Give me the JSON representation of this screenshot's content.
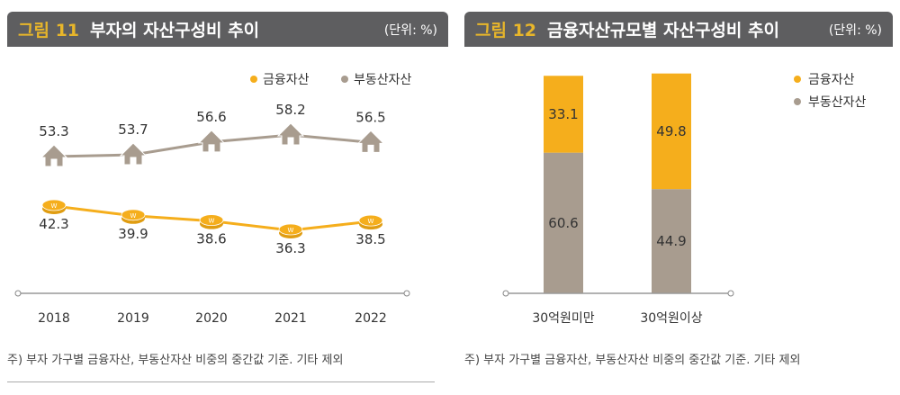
{
  "colors": {
    "financial": "#f5ae1c",
    "real_estate": "#a89c8f",
    "header_bg": "#5e5e60"
  },
  "chart_data": [
    {
      "type": "line",
      "figure_no": "그림 11",
      "title": "부자의 자산구성비 추이",
      "unit": "(단위: %)",
      "categories": [
        "2018",
        "2019",
        "2020",
        "2021",
        "2022"
      ],
      "legend": [
        "금융자산",
        "부동산자산"
      ],
      "legend_placement": "top-right",
      "series": [
        {
          "name": "부동산자산",
          "values": [
            53.3,
            53.7,
            56.6,
            58.2,
            56.5
          ],
          "marker": "house-icon"
        },
        {
          "name": "금융자산",
          "values": [
            42.3,
            39.9,
            38.6,
            36.3,
            38.5
          ],
          "marker": "coin-icon"
        }
      ],
      "note": "주) 부자 가구별 금융자산, 부동산자산 비중의 중간값 기준. 기타 제외"
    },
    {
      "type": "bar",
      "stacked": true,
      "figure_no": "그림 12",
      "title": "금융자산규모별 자산구성비 추이",
      "unit": "(단위: %)",
      "categories": [
        "30억원미만",
        "30억원이상"
      ],
      "legend": [
        "금융자산",
        "부동산자산"
      ],
      "legend_placement": "top-right",
      "series": [
        {
          "name": "부동산자산",
          "values": [
            60.6,
            44.9
          ]
        },
        {
          "name": "금융자산",
          "values": [
            33.1,
            49.8
          ]
        }
      ],
      "note": "주) 부자 가구별 금융자산, 부동산자산 비중의 중간값 기준. 기타 제외"
    }
  ]
}
